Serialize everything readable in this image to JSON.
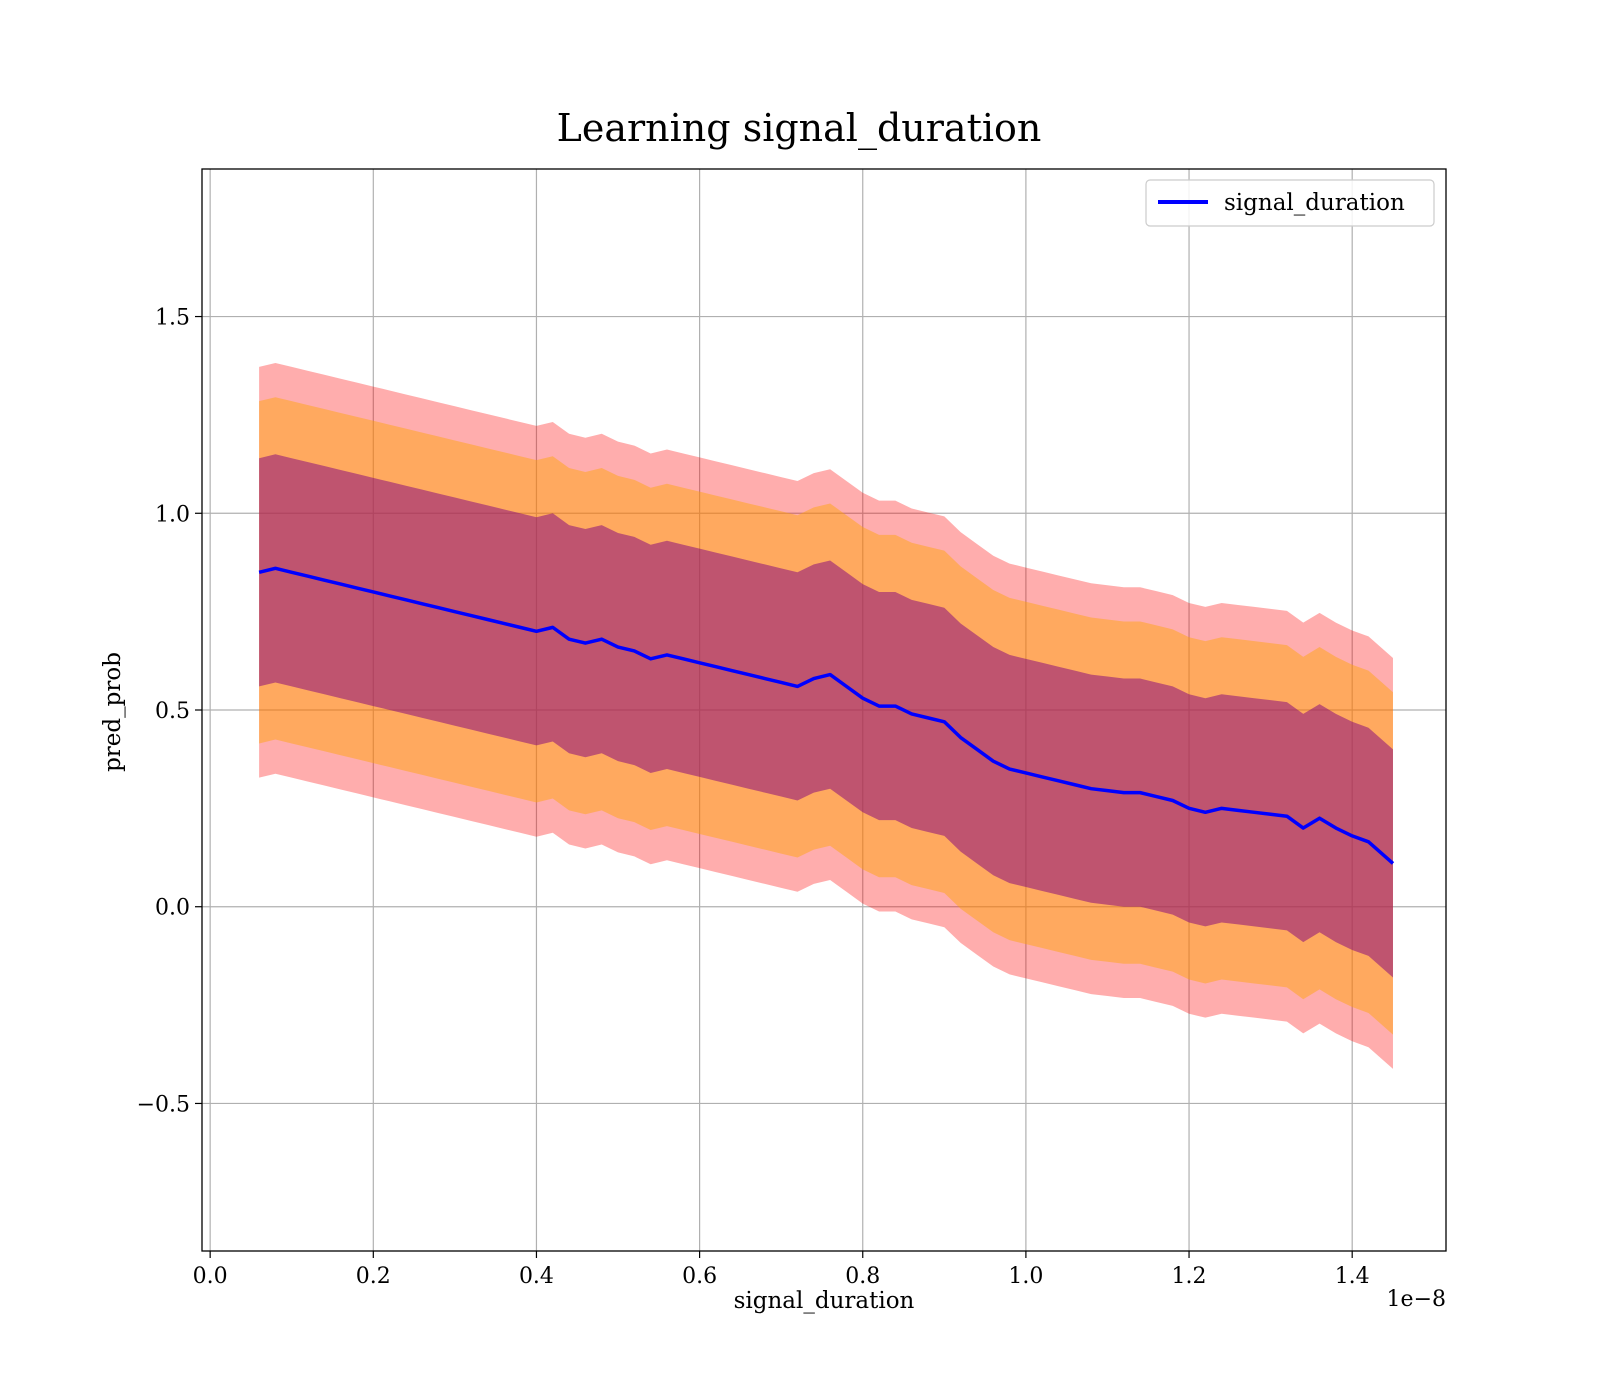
{
  "chart_data": {
    "type": "line",
    "title": "Learning signal_duration",
    "xlabel": "signal_duration",
    "ylabel": "pred_prob",
    "x_offset_text": "1e−8",
    "xlim": [
      -0.01,
      1.515
    ],
    "ylim": [
      -0.875,
      1.875
    ],
    "xticks": [
      0.0,
      0.2,
      0.4,
      0.6,
      0.8,
      1.0,
      1.2,
      1.4
    ],
    "xtick_labels": [
      "0.0",
      "0.2",
      "0.4",
      "0.6",
      "0.8",
      "1.0",
      "1.2",
      "1.4"
    ],
    "yticks": [
      -0.5,
      0.0,
      0.5,
      1.0,
      1.5
    ],
    "ytick_labels": [
      "−0.5",
      "0.0",
      "0.5",
      "1.0",
      "1.5"
    ],
    "grid": true,
    "legend": {
      "position": "top-right",
      "entries": [
        "signal_duration"
      ]
    },
    "colors": {
      "line": "#0000ff",
      "band_outer": "#ff0000",
      "band_mid": "#ffa500",
      "band_inner": "#800080"
    },
    "series": [
      {
        "name": "signal_duration",
        "x": [
          0.06,
          0.08,
          0.1,
          0.12,
          0.14,
          0.16,
          0.18,
          0.2,
          0.22,
          0.24,
          0.26,
          0.28,
          0.3,
          0.32,
          0.34,
          0.36,
          0.38,
          0.4,
          0.42,
          0.44,
          0.46,
          0.48,
          0.5,
          0.52,
          0.54,
          0.56,
          0.58,
          0.6,
          0.62,
          0.64,
          0.66,
          0.68,
          0.7,
          0.72,
          0.74,
          0.76,
          0.78,
          0.8,
          0.82,
          0.84,
          0.86,
          0.88,
          0.9,
          0.92,
          0.94,
          0.96,
          0.98,
          1.0,
          1.02,
          1.04,
          1.06,
          1.08,
          1.1,
          1.12,
          1.14,
          1.16,
          1.18,
          1.2,
          1.22,
          1.24,
          1.26,
          1.28,
          1.3,
          1.32,
          1.34,
          1.36,
          1.38,
          1.4,
          1.42,
          1.45
        ],
        "y": [
          0.85,
          0.86,
          0.85,
          0.84,
          0.83,
          0.82,
          0.81,
          0.8,
          0.79,
          0.78,
          0.77,
          0.76,
          0.75,
          0.74,
          0.73,
          0.72,
          0.71,
          0.7,
          0.71,
          0.68,
          0.67,
          0.68,
          0.66,
          0.65,
          0.63,
          0.64,
          0.63,
          0.62,
          0.61,
          0.6,
          0.59,
          0.58,
          0.57,
          0.56,
          0.58,
          0.59,
          0.56,
          0.53,
          0.51,
          0.51,
          0.49,
          0.48,
          0.47,
          0.43,
          0.4,
          0.37,
          0.35,
          0.34,
          0.33,
          0.32,
          0.31,
          0.3,
          0.295,
          0.29,
          0.29,
          0.28,
          0.27,
          0.25,
          0.24,
          0.25,
          0.245,
          0.24,
          0.235,
          0.23,
          0.2,
          0.225,
          0.2,
          0.18,
          0.165,
          0.11
        ],
        "std": [
          0.29,
          0.29,
          0.29,
          0.29,
          0.29,
          0.29,
          0.29,
          0.29,
          0.29,
          0.29,
          0.29,
          0.29,
          0.29,
          0.29,
          0.29,
          0.29,
          0.29,
          0.29,
          0.29,
          0.29,
          0.29,
          0.29,
          0.29,
          0.29,
          0.29,
          0.29,
          0.29,
          0.29,
          0.29,
          0.29,
          0.29,
          0.29,
          0.29,
          0.29,
          0.29,
          0.29,
          0.29,
          0.29,
          0.29,
          0.29,
          0.29,
          0.29,
          0.29,
          0.29,
          0.29,
          0.29,
          0.29,
          0.29,
          0.29,
          0.29,
          0.29,
          0.29,
          0.29,
          0.29,
          0.29,
          0.29,
          0.29,
          0.29,
          0.29,
          0.29,
          0.29,
          0.29,
          0.29,
          0.29,
          0.29,
          0.29,
          0.29,
          0.29,
          0.29,
          0.29
        ],
        "bands_std_multiples": [
          1.0,
          1.5,
          1.8
        ]
      }
    ]
  }
}
